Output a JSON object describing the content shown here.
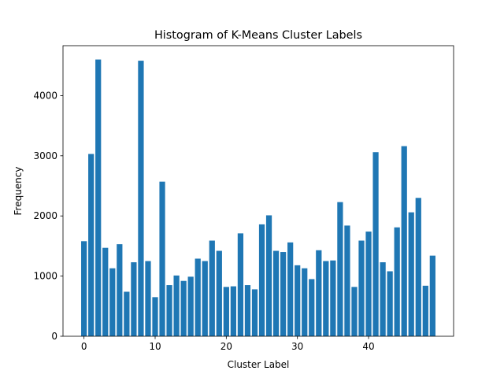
{
  "chart_data": {
    "type": "bar",
    "title": "Histogram of K-Means Cluster Labels",
    "xlabel": "Cluster Label",
    "ylabel": "Frequency",
    "bar_color": "#1f77b4",
    "xlim": [
      -2.95,
      51.95
    ],
    "ylim": [
      0,
      4830
    ],
    "xticks": [
      0,
      10,
      20,
      30,
      40
    ],
    "yticks": [
      0,
      1000,
      2000,
      3000,
      4000
    ],
    "grid": false,
    "categories": [
      0,
      1,
      2,
      3,
      4,
      5,
      6,
      7,
      8,
      9,
      10,
      11,
      12,
      13,
      14,
      15,
      16,
      17,
      18,
      19,
      20,
      21,
      22,
      23,
      24,
      25,
      26,
      27,
      28,
      29,
      30,
      31,
      32,
      33,
      34,
      35,
      36,
      37,
      38,
      39,
      40,
      41,
      42,
      43,
      44,
      45,
      46,
      47,
      48,
      49
    ],
    "values": [
      1580,
      3030,
      4600,
      1470,
      1130,
      1530,
      740,
      1230,
      4580,
      1250,
      650,
      2570,
      850,
      1010,
      920,
      990,
      1290,
      1250,
      1590,
      1420,
      820,
      830,
      1710,
      850,
      780,
      1860,
      2010,
      1420,
      1400,
      1560,
      1180,
      1130,
      950,
      1430,
      1250,
      1260,
      2230,
      1840,
      820,
      1590,
      1740,
      3060,
      1230,
      1080,
      1810,
      3160,
      2060,
      2300,
      840,
      1340
    ]
  }
}
